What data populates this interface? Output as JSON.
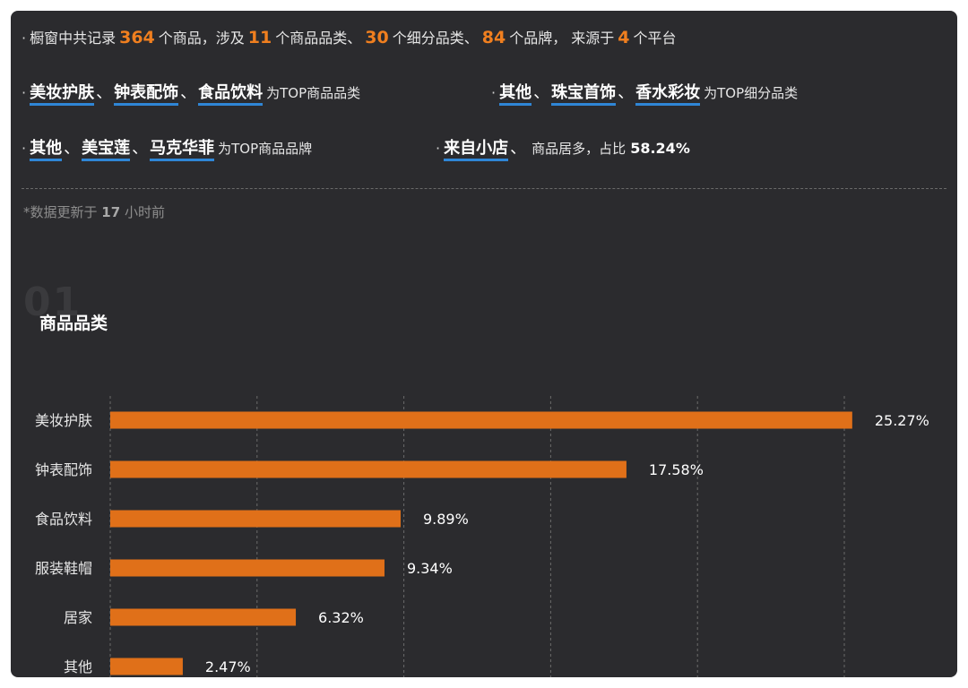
{
  "summary": {
    "p1": "橱窗中共记录",
    "n_items": "364",
    "p2": "个商品，涉及",
    "n_cat": "11",
    "p3": "个商品品类、",
    "n_subcat": "30",
    "p4": "个细分品类、",
    "n_brand": "84",
    "p5": "个品牌，  来源于",
    "n_platform": "4",
    "p6": "个平台"
  },
  "top_categories": {
    "items": [
      "美妆护肤",
      "钟表配饰",
      "食品饮料"
    ],
    "suffix": "为TOP商品品类"
  },
  "top_subcategories": {
    "items": [
      "其他",
      "珠宝首饰",
      "香水彩妆"
    ],
    "suffix": "为TOP细分品类"
  },
  "top_brands": {
    "items": [
      "其他",
      "美宝莲",
      "马克华菲"
    ],
    "suffix": "为TOP商品品牌"
  },
  "source": {
    "item": "来自小店",
    "text": "商品居多，占比",
    "pct": "58.24%"
  },
  "updated": {
    "prefix": "*数据更新于",
    "value": "17",
    "suffix": "小时前"
  },
  "section": {
    "number": "01",
    "title": "商品品类"
  },
  "colors": {
    "bar": "#e07019",
    "accent_num": "#f07f1f",
    "underline": "#2f86d6"
  },
  "chart_data": {
    "type": "bar",
    "orientation": "horizontal",
    "categories": [
      "美妆护肤",
      "钟表配饰",
      "食品饮料",
      "服装鞋帽",
      "居家",
      "其他"
    ],
    "values": [
      25.27,
      17.58,
      9.89,
      9.34,
      6.32,
      2.47
    ],
    "value_labels": [
      "25.27%",
      "17.58%",
      "9.89%",
      "9.34%",
      "6.32%",
      "2.47%"
    ],
    "xlim": [
      0,
      25
    ],
    "grid": "vertical-dashed",
    "legend": "none"
  }
}
